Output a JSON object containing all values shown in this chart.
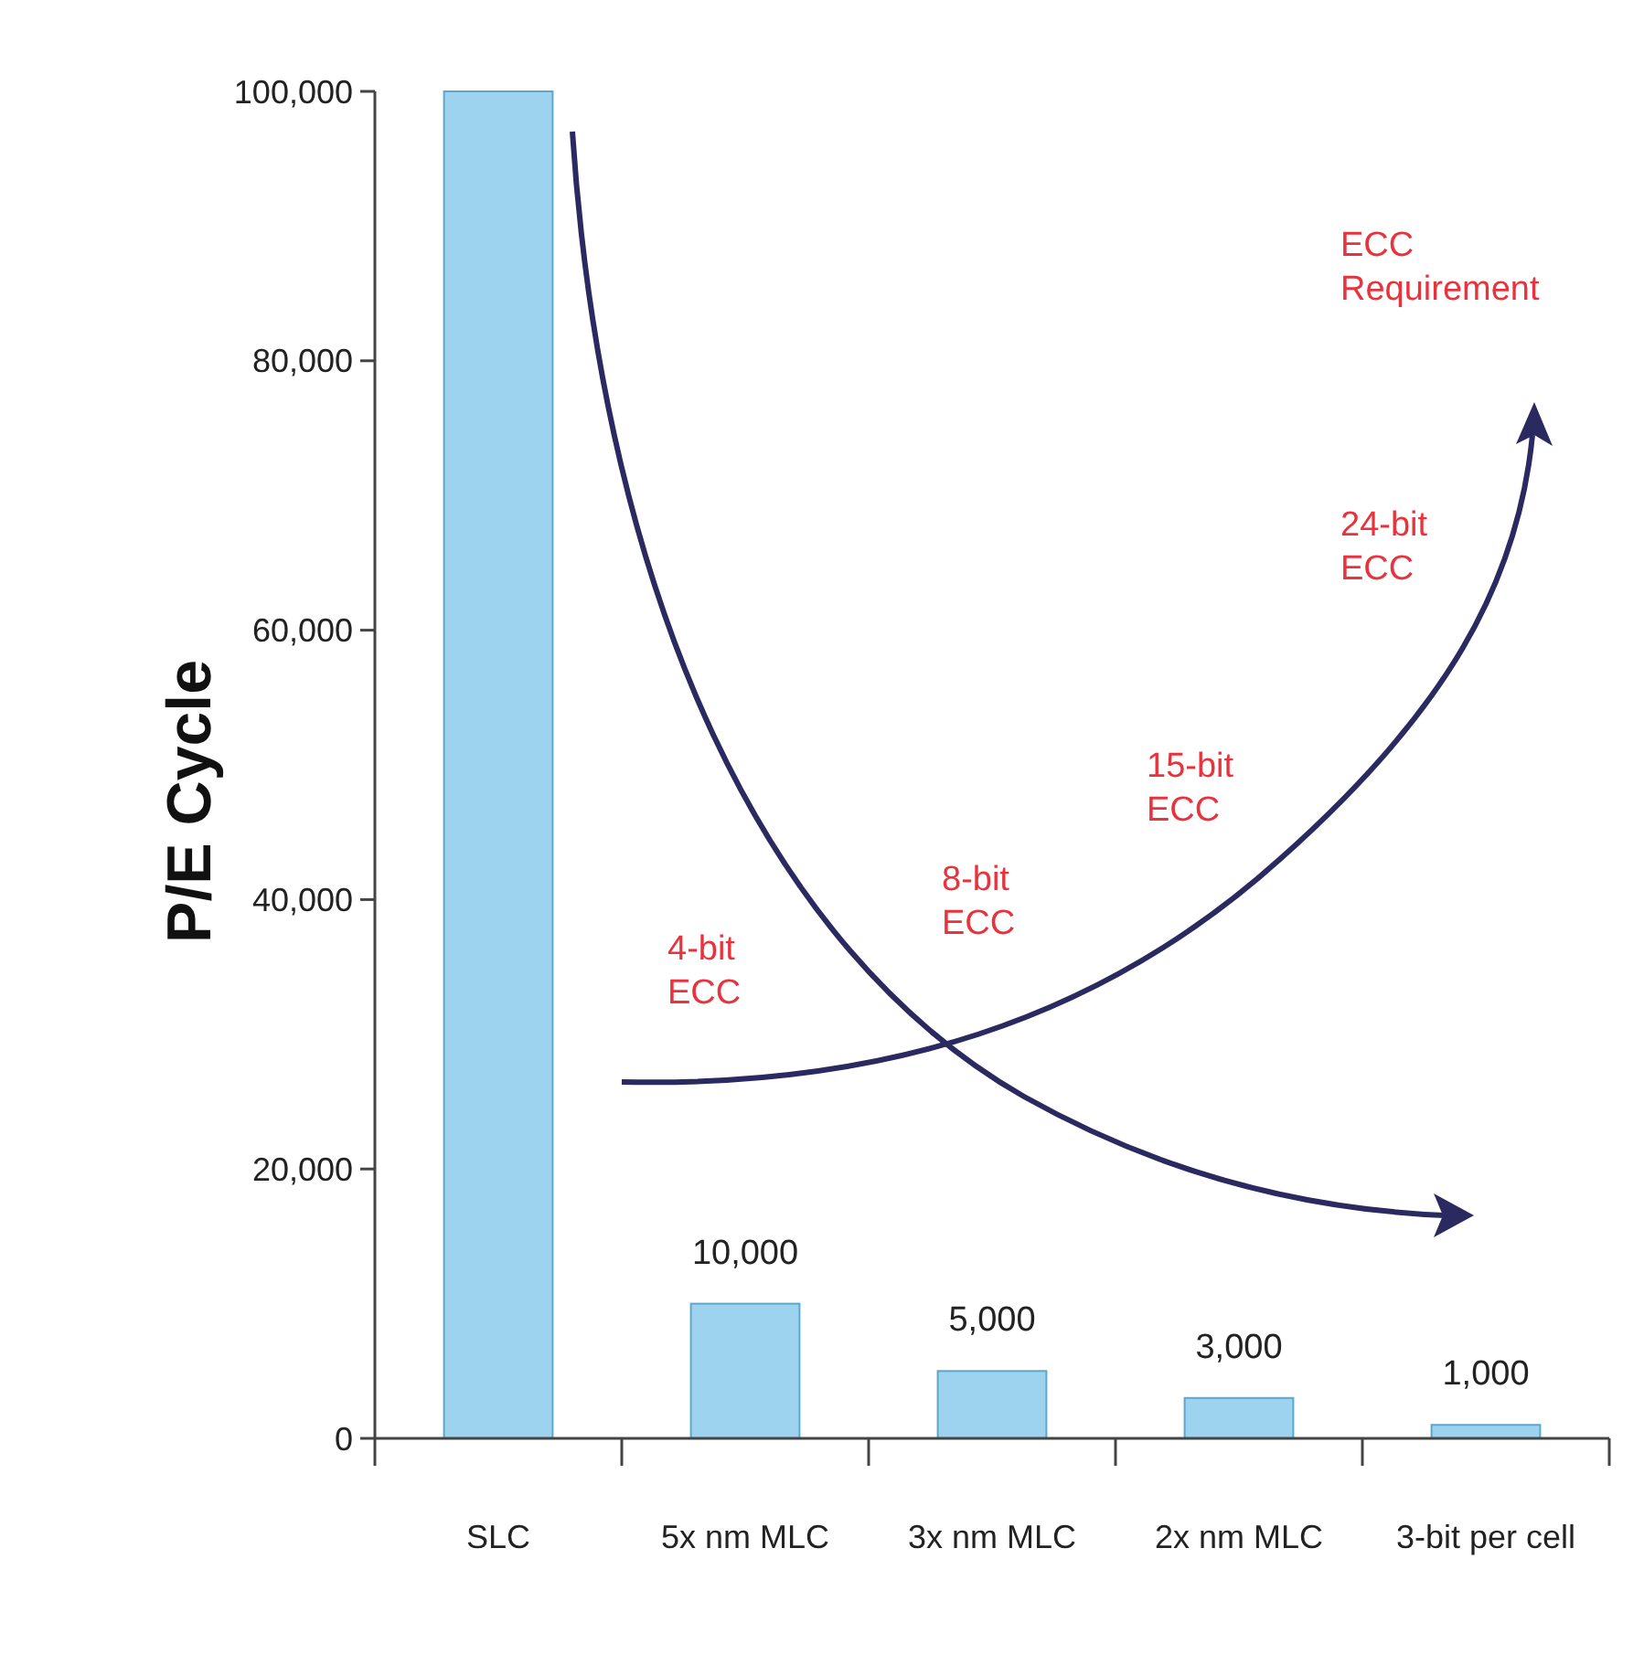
{
  "chart_data": {
    "type": "bar",
    "ylabel": "P/E Cycle",
    "categories": [
      "SLC",
      "5x nm MLC",
      "3x nm MLC",
      "2x nm MLC",
      "3-bit per cell"
    ],
    "values": [
      100000,
      10000,
      5000,
      3000,
      1000
    ],
    "value_labels": [
      null,
      "10,000",
      "5,000",
      "3,000",
      "1,000"
    ],
    "color": "#9dd3ef",
    "ylim": [
      0,
      100000
    ],
    "yticks": [
      {
        "value": 0,
        "label": "0"
      },
      {
        "value": 20000,
        "label": "20,000"
      },
      {
        "value": 40000,
        "label": "40,000"
      },
      {
        "value": 60000,
        "label": "60,000"
      },
      {
        "value": 80000,
        "label": "80,000"
      },
      {
        "value": 100000,
        "label": "100,000"
      }
    ],
    "grid": false,
    "annotations": [
      "ECC Requirement",
      "24-bit ECC",
      "15-bit ECC",
      "8-bit ECC",
      "4-bit ECC"
    ]
  }
}
